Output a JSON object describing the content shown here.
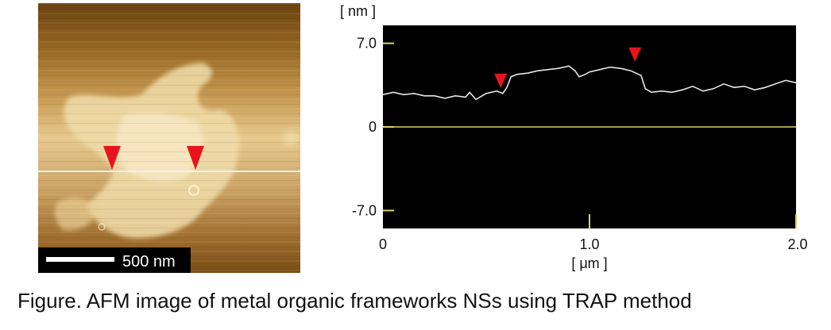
{
  "afm_image": {
    "scalebar_label": "500 nm",
    "marker_color": "#e8141c",
    "line_color": "#f2f2f2"
  },
  "chart_data": {
    "type": "line",
    "ylabel": "[ nm ]",
    "xlabel": "[ μm ]",
    "xlim": [
      0,
      2.0
    ],
    "ylim": [
      -8.5,
      8.5
    ],
    "yticks": [
      7.0,
      0,
      -7.0
    ],
    "ytick_labels": [
      "7.0",
      "0",
      "-7.0"
    ],
    "xticks": [
      0,
      1.0,
      2.0
    ],
    "xtick_labels": [
      "0",
      "1.0",
      "2.0"
    ],
    "background": "#000000",
    "line_color": "#e6e6e6",
    "axis_color": "#d9d26a",
    "series": [
      {
        "x": [
          0,
          0.05,
          0.1,
          0.15,
          0.2,
          0.25,
          0.3,
          0.35,
          0.4,
          0.42,
          0.45,
          0.5,
          0.55,
          0.58,
          0.6,
          0.62,
          0.65,
          0.7,
          0.75,
          0.8,
          0.85,
          0.9,
          0.93,
          0.95,
          0.98,
          1.0,
          1.05,
          1.1,
          1.15,
          1.2,
          1.25,
          1.27,
          1.3,
          1.35,
          1.4,
          1.45,
          1.5,
          1.55,
          1.6,
          1.65,
          1.7,
          1.75,
          1.8,
          1.85,
          1.9,
          1.95,
          2.0
        ],
        "y": [
          2.7,
          2.9,
          2.7,
          2.8,
          2.6,
          2.6,
          2.4,
          2.6,
          2.5,
          2.9,
          2.3,
          2.8,
          3.0,
          2.8,
          3.3,
          4.2,
          4.4,
          4.5,
          4.7,
          4.8,
          4.9,
          5.1,
          4.7,
          4.2,
          4.4,
          4.6,
          4.8,
          5.0,
          4.9,
          4.7,
          4.3,
          3.2,
          2.9,
          3.0,
          2.9,
          3.1,
          3.4,
          3.0,
          3.2,
          3.6,
          3.3,
          3.4,
          3.1,
          3.3,
          3.6,
          3.9,
          3.7
        ]
      }
    ],
    "markers": [
      {
        "x": 0.57,
        "y": 3.0
      },
      {
        "x": 1.22,
        "y": 5.2
      }
    ],
    "marker_color": "#e8141c"
  },
  "caption": "Figure. AFM image of metal organic frameworks NSs using TRAP method"
}
